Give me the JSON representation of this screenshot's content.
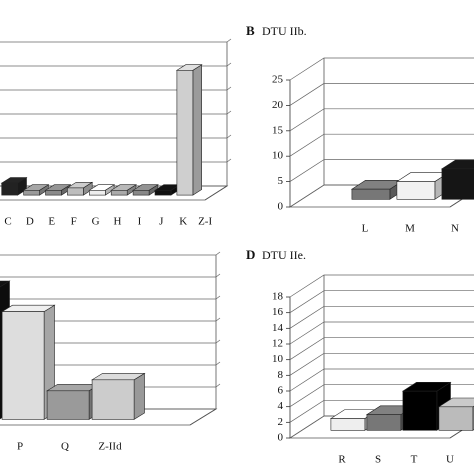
{
  "chart_data": [
    {
      "type": "bar3d",
      "categories": [
        "C",
        "D",
        "E",
        "F",
        "G",
        "H",
        "I",
        "J",
        "K",
        "Z-I"
      ],
      "values": [
        2.5,
        1,
        1,
        1.5,
        1,
        1,
        1,
        1,
        26,
        0
      ],
      "colors": [
        "#222222",
        "#9a9a9a",
        "#8a8a8a",
        "#bdbdbd",
        "#eeeeee",
        "#aaaaaa",
        "#888888",
        "#111111",
        "#cfcfcf",
        "#cfcfcf"
      ],
      "ylim": [
        0,
        30
      ]
    },
    {
      "type": "bar3d",
      "panel_label": "B",
      "title": "DTU IIb.",
      "categories": [
        "L",
        "M",
        "N"
      ],
      "values": [
        2,
        3.5,
        6
      ],
      "colors": [
        "#777777",
        "#f2f2f2",
        "#151515"
      ],
      "ylim": [
        0,
        25
      ],
      "yticks": [
        0,
        5,
        10,
        15,
        20,
        25
      ]
    },
    {
      "type": "bar3d",
      "categories": [
        null,
        "P",
        "Q",
        "Z-IId"
      ],
      "values": [
        6,
        4.9,
        1.3,
        1.8
      ],
      "colors": [
        "#111111",
        "#dddddd",
        "#9a9a9a",
        "#cccccc"
      ],
      "ylim": [
        0,
        7
      ]
    },
    {
      "type": "bar3d",
      "panel_label": "D",
      "title": "DTU IIe.",
      "categories": [
        "R",
        "S",
        "T",
        "U",
        null
      ],
      "values": [
        1.5,
        2,
        5,
        3,
        3.5
      ],
      "colors": [
        "#eeeeee",
        "#777777",
        "#000000",
        "#bbbbbb",
        "#999999"
      ],
      "ylim": [
        0,
        18
      ],
      "yticks": [
        0,
        2,
        4,
        6,
        8,
        10,
        12,
        14,
        16,
        18
      ]
    }
  ]
}
